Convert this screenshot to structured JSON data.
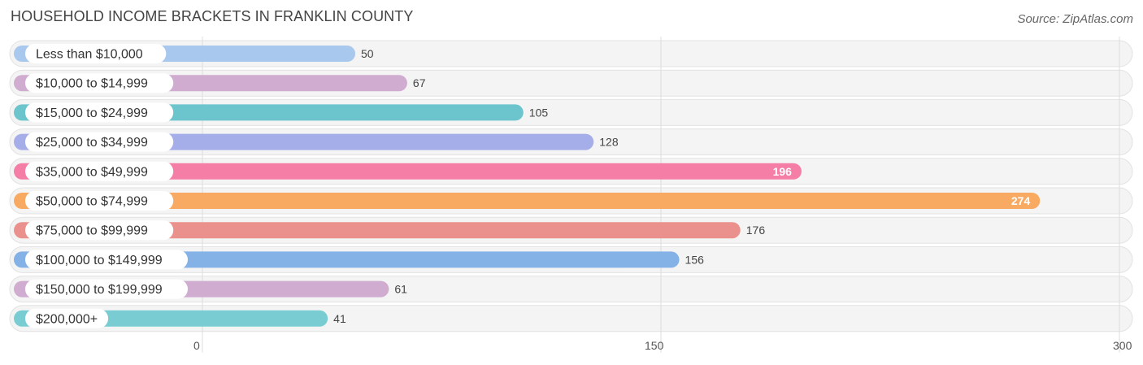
{
  "header": {
    "title": "HOUSEHOLD INCOME BRACKETS IN FRANKLIN COUNTY",
    "source": "Source: ZipAtlas.com"
  },
  "chart_data": {
    "type": "bar",
    "orientation": "horizontal",
    "title": "HOUSEHOLD INCOME BRACKETS IN FRANKLIN COUNTY",
    "categories": [
      "Less than $10,000",
      "$10,000 to $14,999",
      "$15,000 to $24,999",
      "$25,000 to $34,999",
      "$35,000 to $49,999",
      "$50,000 to $74,999",
      "$75,000 to $99,999",
      "$100,000 to $149,999",
      "$150,000 to $199,999",
      "$200,000+"
    ],
    "values": [
      50,
      67,
      105,
      128,
      196,
      274,
      176,
      156,
      61,
      41
    ],
    "value_labels": [
      "50",
      "67",
      "105",
      "128",
      "196",
      "274",
      "176",
      "156",
      "61",
      "41"
    ],
    "colors": [
      "#a9c8ed",
      "#cfacd0",
      "#6cc4cc",
      "#a6aeea",
      "#f47ea5",
      "#f8aa63",
      "#eb918d",
      "#84b1e6",
      "#cfacd0",
      "#79cdd2"
    ],
    "xlim": [
      0,
      300
    ],
    "xticks": [
      0,
      150,
      300
    ],
    "xtick_labels": [
      "0",
      "150",
      "300"
    ],
    "grid": true
  }
}
